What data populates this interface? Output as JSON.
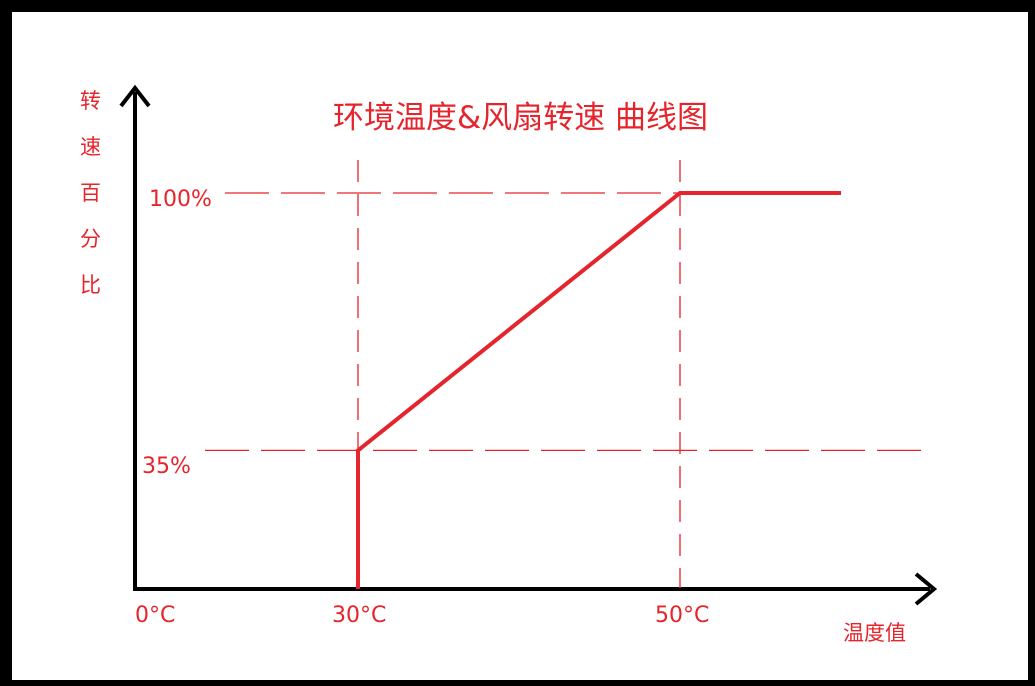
{
  "chart_data": {
    "type": "line",
    "title": "环境温度&风扇转速 曲线图",
    "xlabel": "温度值",
    "ylabel": [
      "转",
      "速",
      "百",
      "分",
      "比"
    ],
    "x_ticks": [
      "0°C",
      "30°C",
      "50°C"
    ],
    "y_ticks": [
      "100%",
      "35%"
    ],
    "series": [
      {
        "x": [
          30,
          30,
          50,
          60
        ],
        "y": [
          0,
          35,
          100,
          100
        ]
      }
    ],
    "guide_lines": {
      "vertical_x": [
        30,
        50
      ],
      "horizontal_y": [
        100,
        35
      ]
    },
    "xlim": [
      0,
      60
    ],
    "ylim": [
      0,
      130
    ],
    "grid": false,
    "legend": "none"
  },
  "colors": {
    "accent": "#e5242b",
    "axis": "#000000",
    "background": "#ffffff"
  }
}
